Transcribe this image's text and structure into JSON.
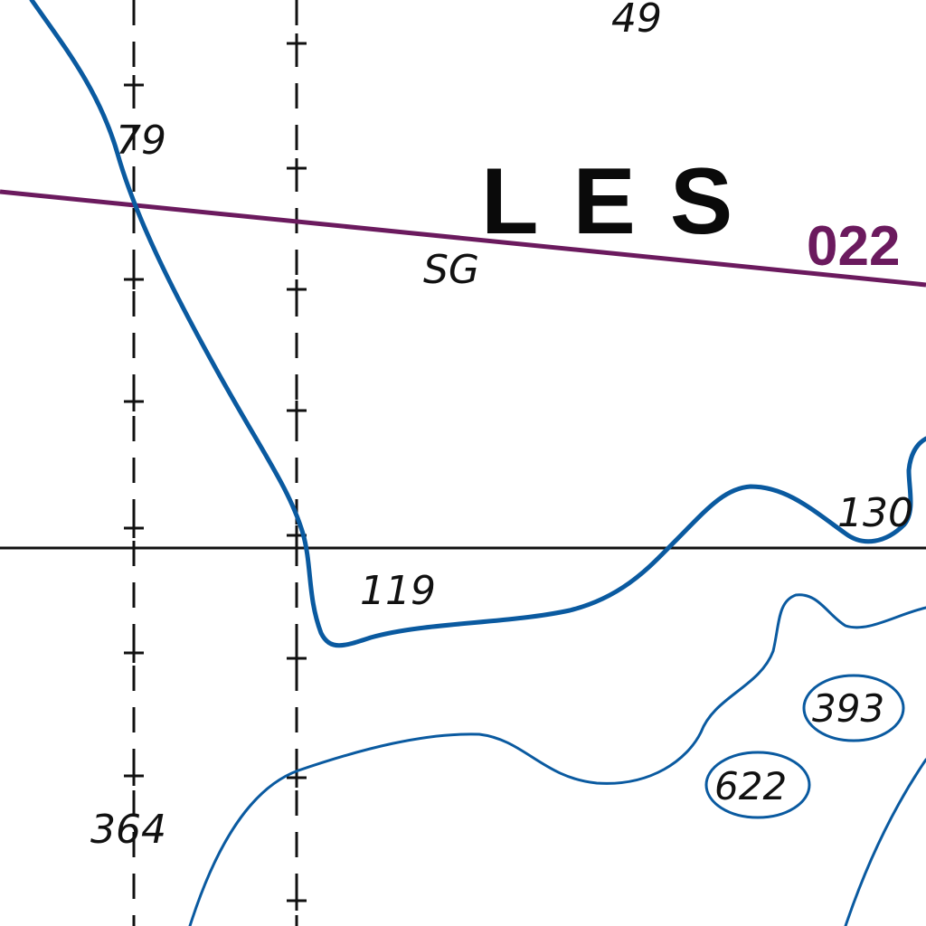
{
  "map": {
    "place_name": "LES",
    "route_label": "022",
    "seabed_label": "SG",
    "soundings": {
      "top": "49",
      "left_upper": "79",
      "mid": "119",
      "right": "130",
      "left_lower": "364",
      "circled_a": "393",
      "circled_b": "622"
    },
    "colors": {
      "contour": "#0a5aa0",
      "route": "#6b1a5e",
      "grid": "#111111",
      "background": "#ffffff"
    }
  }
}
